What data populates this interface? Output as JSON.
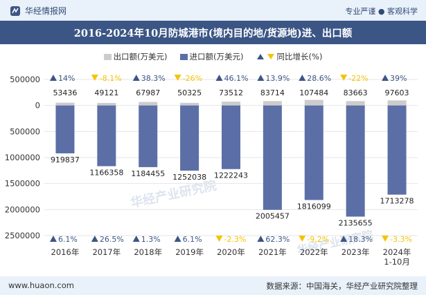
{
  "header": {
    "brand": "华经情报网",
    "slogan": "专业严谨 ● 客观科学",
    "title": "2016-2024年10月防城港市(境内目的地/货源地)进、出口额"
  },
  "legend": {
    "export": "出口额(万美元)",
    "import": "进口额(万美元)",
    "growth": "同比增长(%)"
  },
  "footer": {
    "url": "www.huaon.com",
    "source": "数据来源：中国海关，华经产业研究院整理"
  },
  "colors": {
    "export": "#cccccc",
    "import": "#5b6fa6",
    "up": "#3b5585",
    "down": "#f5c400",
    "grid": "#e4e4e4"
  },
  "chart_data": {
    "type": "bar",
    "categories": [
      "2016年",
      "2017年",
      "2018年",
      "2019年",
      "2020年",
      "2021年",
      "2022年",
      "2023年",
      "2024年\n1-10月"
    ],
    "series": [
      {
        "name": "出口额(万美元)",
        "values": [
          53436,
          49121,
          67987,
          50325,
          73512,
          83714,
          107484,
          83663,
          97603
        ],
        "labels": [
          "53436",
          "49121",
          "67987",
          "50325",
          "73512",
          "83714",
          "107484",
          "83663",
          "97603"
        ]
      },
      {
        "name": "进口额(万美元)",
        "values": [
          -919837,
          -1166358,
          -1184455,
          -1252038,
          -1222243,
          -2005457,
          -1816099,
          -2135655,
          -1713278
        ],
        "labels": [
          "919837",
          "1166358",
          "1184455",
          "1252038",
          "1222243",
          "2005457",
          "1816099",
          "2135655",
          "1713278"
        ]
      }
    ],
    "export_growth": {
      "values": [
        14,
        -8.1,
        38.3,
        -26,
        46.1,
        13.9,
        28.6,
        -22,
        39
      ],
      "labels": [
        "14%",
        "-8.1%",
        "38.3%",
        "-26%",
        "46.1%",
        "13.9%",
        "28.6%",
        "-22%",
        "39%"
      ]
    },
    "import_growth": {
      "values": [
        6.1,
        26.5,
        1.3,
        6.1,
        -2.3,
        62.3,
        -9.2,
        18.3,
        -3.3
      ],
      "labels": [
        "6.1%",
        "26.5%",
        "1.3%",
        "6.1%",
        "-2.3%",
        "62.3%",
        "-9.2%",
        "18.3%",
        "-3.3%"
      ]
    },
    "ylim": [
      -2500000,
      500000
    ],
    "y_ticks": [
      500000,
      0,
      -500000,
      -1000000,
      -1500000,
      -2000000,
      -2500000
    ],
    "y_tick_labels": [
      "500000",
      "0",
      "500000",
      "1000000",
      "1500000",
      "2000000",
      "2500000"
    ],
    "grid": true,
    "legend_position": "top-center",
    "watermark": "华经产业研究院"
  }
}
